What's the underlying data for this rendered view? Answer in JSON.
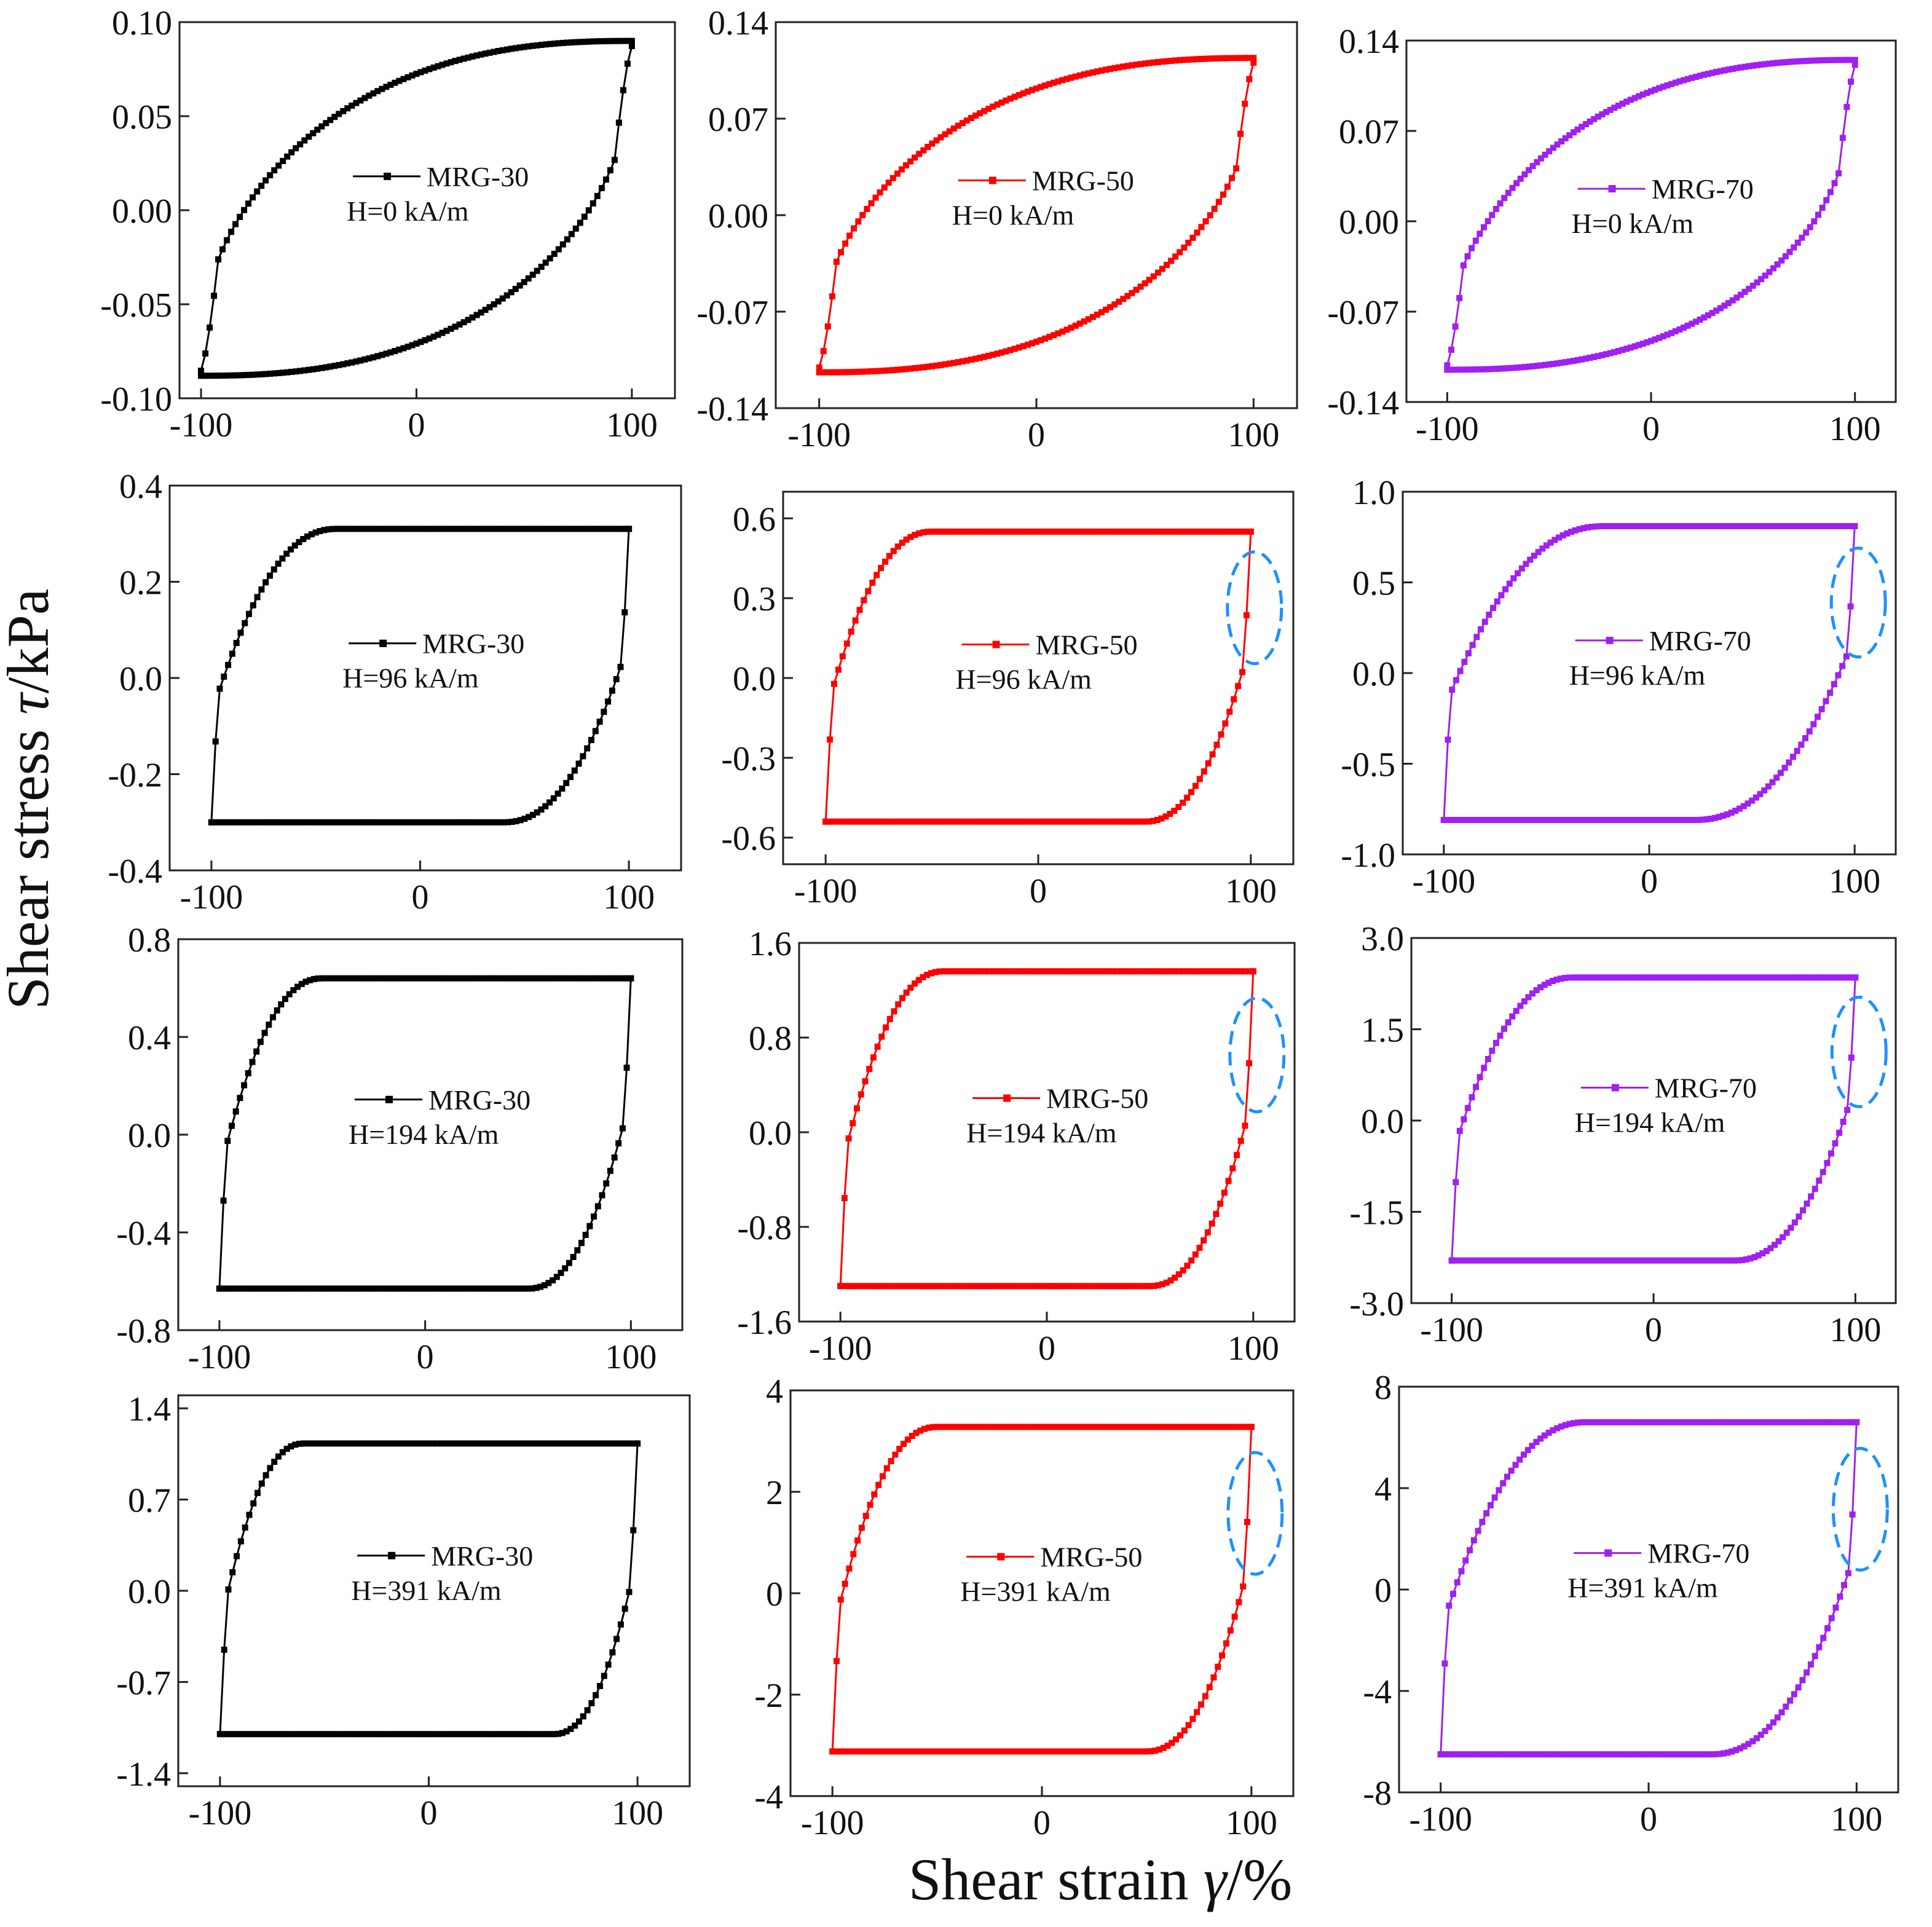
{
  "figure": {
    "ylabel_main": "Shear stress ",
    "ylabel_symbol": "τ",
    "ylabel_unit": "/kPa",
    "xlabel_main": "Shear strain ",
    "xlabel_symbol": "γ",
    "xlabel_unit": "/%"
  },
  "colors": {
    "MRG-30": "#000000",
    "MRG-50": "#ff0000",
    "MRG-70": "#a020f0",
    "highlight": "#1e90ff"
  },
  "chart_data": [
    {
      "type": "line",
      "series_name": "MRG-30",
      "field_label": "H=0 kA/m",
      "field_kA_m": 0,
      "xlim": [
        -110,
        120
      ],
      "ylim": [
        -0.1,
        0.1
      ],
      "xticks": [
        "-100",
        "0",
        "100"
      ],
      "yticks": [
        "-0.10",
        "-0.05",
        "0.00",
        "0.05",
        "0.10"
      ],
      "tau_max": 0.09,
      "tau_min": -0.088,
      "plateau_strain": null,
      "highlight": false,
      "x_points": 100
    },
    {
      "type": "line",
      "series_name": "MRG-50",
      "field_label": "H=0 kA/m",
      "field_kA_m": 0,
      "xlim": [
        -120,
        120
      ],
      "ylim": [
        -0.14,
        0.14
      ],
      "xticks": [
        "-100",
        "0",
        "100"
      ],
      "yticks": [
        "-0.14",
        "-0.07",
        "0.00",
        "0.07",
        "0.14"
      ],
      "tau_max": 0.114,
      "tau_min": -0.114,
      "plateau_strain": null,
      "highlight": false,
      "x_points": 100
    },
    {
      "type": "line",
      "series_name": "MRG-70",
      "field_label": "H=0 kA/m",
      "field_kA_m": 0,
      "xlim": [
        -120,
        120
      ],
      "ylim": [
        -0.14,
        0.14
      ],
      "xticks": [
        "-100",
        "0",
        "100"
      ],
      "yticks": [
        "-0.14",
        "-0.07",
        "0.00",
        "0.07",
        "0.14"
      ],
      "tau_max": 0.125,
      "tau_min": -0.115,
      "plateau_strain": null,
      "highlight": false,
      "x_points": 100
    },
    {
      "type": "line",
      "series_name": "MRG-30",
      "field_label": "H=96 kA/m",
      "field_kA_m": 96,
      "xlim": [
        -120,
        125
      ],
      "ylim": [
        -0.4,
        0.4
      ],
      "xticks": [
        "-100",
        "0",
        "100"
      ],
      "yticks": [
        "-0.4",
        "-0.2",
        "0.0",
        "0.2",
        "0.4"
      ],
      "tau_max": 0.31,
      "tau_min": -0.3,
      "plateau_strain": -40,
      "highlight": false,
      "x_points": 100
    },
    {
      "type": "line",
      "series_name": "MRG-50",
      "field_label": "H=96 kA/m",
      "field_kA_m": 96,
      "xlim": [
        -120,
        120
      ],
      "ylim": [
        -0.7,
        0.7
      ],
      "xticks": [
        "-100",
        "0",
        "100"
      ],
      "yticks": [
        "-0.6",
        "-0.3",
        "0.0",
        "0.3",
        "0.6"
      ],
      "tau_max": 0.55,
      "tau_min": -0.54,
      "plateau_strain": -50,
      "highlight": true,
      "x_points": 100
    },
    {
      "type": "line",
      "series_name": "MRG-70",
      "field_label": "H=96 kA/m",
      "field_kA_m": 96,
      "xlim": [
        -120,
        120
      ],
      "ylim": [
        -1.0,
        1.0
      ],
      "xticks": [
        "-100",
        "0",
        "100"
      ],
      "yticks": [
        "-1.0",
        "-0.5",
        "0.0",
        "0.5",
        "1.0"
      ],
      "tau_max": 0.81,
      "tau_min": -0.81,
      "plateau_strain": -22,
      "highlight": true,
      "x_points": 100
    },
    {
      "type": "line",
      "series_name": "MRG-30",
      "field_label": "H=194 kA/m",
      "field_kA_m": 194,
      "xlim": [
        -120,
        125
      ],
      "ylim": [
        -0.8,
        0.8
      ],
      "xticks": [
        "-100",
        "0",
        "100"
      ],
      "yticks": [
        "-0.8",
        "-0.4",
        "0.0",
        "0.4",
        "0.8"
      ],
      "tau_max": 0.64,
      "tau_min": -0.63,
      "plateau_strain": -50,
      "highlight": false,
      "x_points": 100
    },
    {
      "type": "line",
      "series_name": "MRG-50",
      "field_label": "H=194 kA/m",
      "field_kA_m": 194,
      "xlim": [
        -120,
        120
      ],
      "ylim": [
        -1.6,
        1.6
      ],
      "xticks": [
        "-100",
        "0",
        "100"
      ],
      "yticks": [
        "-1.6",
        "-0.8",
        "0.0",
        "0.8",
        "1.6"
      ],
      "tau_max": 1.36,
      "tau_min": -1.3,
      "plateau_strain": -50,
      "highlight": true,
      "x_points": 100
    },
    {
      "type": "line",
      "series_name": "MRG-70",
      "field_label": "H=194 kA/m",
      "field_kA_m": 194,
      "xlim": [
        -120,
        120
      ],
      "ylim": [
        -3.0,
        3.0
      ],
      "xticks": [
        "-100",
        "0",
        "100"
      ],
      "yticks": [
        "-3.0",
        "-1.5",
        "0.0",
        "1.5",
        "3.0"
      ],
      "tau_max": 2.35,
      "tau_min": -2.3,
      "plateau_strain": -40,
      "highlight": true,
      "x_points": 100
    },
    {
      "type": "line",
      "series_name": "MRG-30",
      "field_label": "H=391 kA/m",
      "field_kA_m": 391,
      "xlim": [
        -120,
        125
      ],
      "ylim": [
        -1.5,
        1.5
      ],
      "xticks": [
        "-100",
        "0",
        "100"
      ],
      "yticks": [
        "-1.4",
        "-0.7",
        "0.0",
        "0.7",
        "1.4"
      ],
      "tau_max": 1.13,
      "tau_min": -1.1,
      "plateau_strain": -60,
      "highlight": false,
      "x_points": 100
    },
    {
      "type": "line",
      "series_name": "MRG-50",
      "field_label": "H=391 kA/m",
      "field_kA_m": 391,
      "xlim": [
        -120,
        120
      ],
      "ylim": [
        -4,
        4
      ],
      "xticks": [
        "-100",
        "0",
        "100"
      ],
      "yticks": [
        "-4",
        "-2",
        "0",
        "2",
        "4"
      ],
      "tau_max": 3.28,
      "tau_min": -3.12,
      "plateau_strain": -50,
      "highlight": true,
      "x_points": 100
    },
    {
      "type": "line",
      "series_name": "MRG-70",
      "field_label": "H=391 kA/m",
      "field_kA_m": 391,
      "xlim": [
        -120,
        120
      ],
      "ylim": [
        -8,
        8
      ],
      "xticks": [
        "-100",
        "0",
        "100"
      ],
      "yticks": [
        "-8",
        "-4",
        "0",
        "4",
        "8"
      ],
      "tau_max": 6.6,
      "tau_min": -6.5,
      "plateau_strain": -30,
      "highlight": true,
      "x_points": 100
    }
  ]
}
